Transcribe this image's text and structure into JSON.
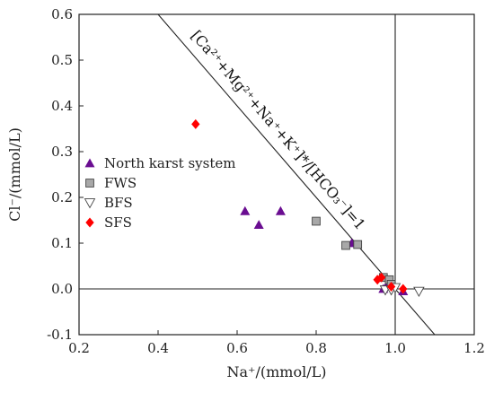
{
  "chart_data": {
    "type": "scatter",
    "xlabel": "Na⁺/(mmol/L)",
    "ylabel": "Cl⁻/(mmol/L)",
    "xlim": [
      0.2,
      1.2
    ],
    "ylim": [
      -0.1,
      0.6
    ],
    "xticks": [
      "0.2",
      "0.4",
      "0.6",
      "0.8",
      "1.0",
      "1.2"
    ],
    "yticks": [
      "-0.1",
      "0.0",
      "0.1",
      "0.2",
      "0.3",
      "0.4",
      "0.5",
      "0.6"
    ],
    "grid": false,
    "legend_position": "left",
    "annotation": "[Ca²⁺+Mg²⁺+Na⁺+K⁺]*/[HCO₃⁻]=1",
    "reference_lines": [
      {
        "type": "diagonal",
        "from": [
          0.4,
          0.6
        ],
        "to": [
          1.0,
          0.0
        ]
      },
      {
        "type": "vertical",
        "x": 1.0
      },
      {
        "type": "horizontal",
        "y": 0.0
      }
    ],
    "series": [
      {
        "name": "North karst system",
        "marker": "triangle-up",
        "color": "#6a0d91",
        "points": [
          [
            0.62,
            0.17
          ],
          [
            0.655,
            0.14
          ],
          [
            0.71,
            0.17
          ],
          [
            0.89,
            0.1
          ],
          [
            0.98,
            0.01
          ],
          [
            1.02,
            -0.005
          ],
          [
            0.97,
            0.0
          ]
        ]
      },
      {
        "name": "FWS",
        "marker": "square",
        "color": "#a8a8a8",
        "points": [
          [
            0.8,
            0.148
          ],
          [
            0.875,
            0.095
          ],
          [
            0.905,
            0.097
          ],
          [
            0.97,
            0.025
          ],
          [
            0.985,
            0.02
          ],
          [
            0.99,
            0.01
          ]
        ]
      },
      {
        "name": "BFS",
        "marker": "triangle-down",
        "color": "#ffffff",
        "points": [
          [
            0.975,
            -0.002
          ],
          [
            0.99,
            -0.002
          ],
          [
            1.0,
            0.003
          ],
          [
            1.06,
            -0.005
          ]
        ]
      },
      {
        "name": "SFS",
        "marker": "diamond",
        "color": "#ff0000",
        "points": [
          [
            0.495,
            0.36
          ],
          [
            0.955,
            0.02
          ],
          [
            0.965,
            0.025
          ],
          [
            0.99,
            0.005
          ],
          [
            1.02,
            0.0
          ]
        ]
      }
    ]
  }
}
